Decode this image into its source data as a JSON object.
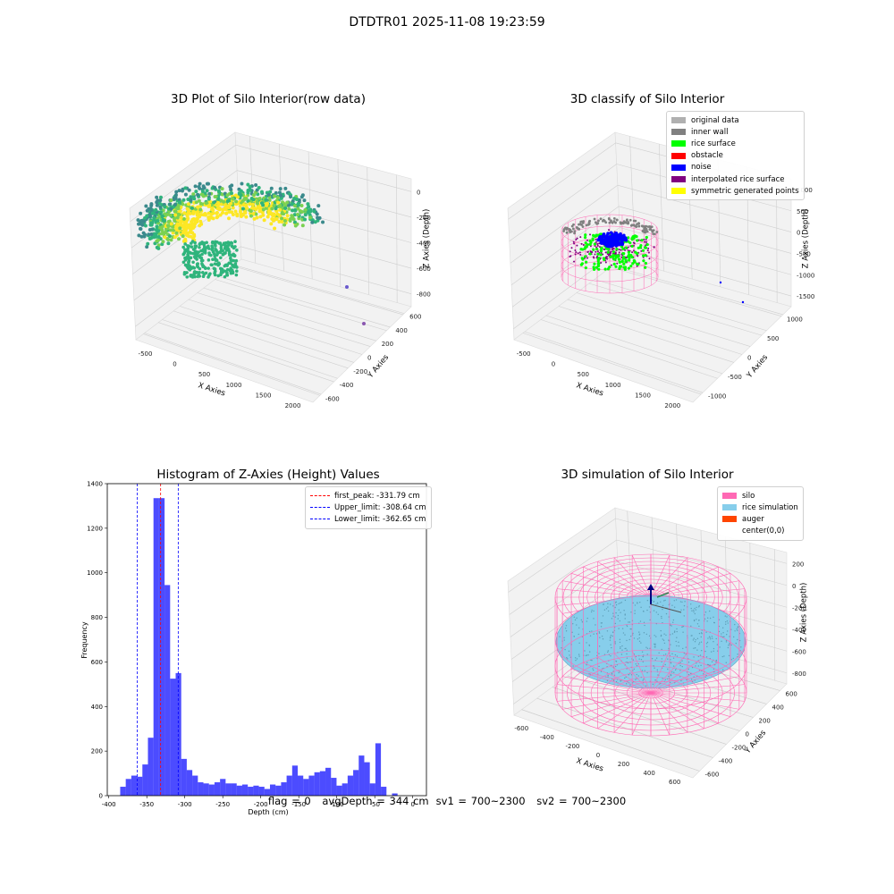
{
  "figure": {
    "title": "DTDTR01 2025-11-08 19:23:59"
  },
  "status": {
    "flag": "flag = 0",
    "avg_depth": "avgDepth = 344 cm",
    "sv1": "sv1 = 700~2300",
    "sv2": "sv2 = 700~2300"
  },
  "chart_data": [
    {
      "type": "scatter",
      "title": "3D Plot of Silo Interior(row data)",
      "xlabel": "X Axies",
      "ylabel": "Y Axies",
      "zlabel": "Z Axies (Depth)",
      "x_ticks": [
        "-500",
        "0",
        "500",
        "1000",
        "1500",
        "2000"
      ],
      "y_ticks": [
        "-600",
        "-400",
        "-200",
        "0",
        "200",
        "400",
        "600"
      ],
      "z_ticks": [
        "0",
        "-200",
        "-400",
        "-600",
        "-800"
      ],
      "grid": true,
      "colormap": [
        "#3b8a8c",
        "#2fb47c",
        "#7ad151",
        "#fde725"
      ],
      "outliers": [
        {
          "x": 2000,
          "y": 100,
          "z": -800
        },
        {
          "x": 2000,
          "y": -400,
          "z": -900
        }
      ]
    },
    {
      "type": "scatter",
      "title": "3D classify of Silo Interior",
      "xlabel": "X Axies",
      "ylabel": "Y Axies",
      "zlabel": "Z Axies (Depth)",
      "x_ticks": [
        "-500",
        "0",
        "500",
        "1000",
        "1500",
        "2000"
      ],
      "y_ticks": [
        "-1000",
        "-500",
        "0",
        "500",
        "1000"
      ],
      "z_ticks": [
        "1000",
        "500",
        "0",
        "-500",
        "-1000",
        "-1500"
      ],
      "grid": true,
      "legend_position": "top-right",
      "legend": [
        {
          "label": "original data",
          "color": "#b0b0b0"
        },
        {
          "label": "inner wall",
          "color": "#808080"
        },
        {
          "label": "rice surface",
          "color": "#00ff00"
        },
        {
          "label": "obstacle",
          "color": "#ff0000"
        },
        {
          "label": "noise",
          "color": "#0000ff"
        },
        {
          "label": "interpolated rice surface",
          "color": "#800080"
        },
        {
          "label": "symmetric generated points",
          "color": "#ffff00"
        }
      ]
    },
    {
      "type": "bar",
      "title": "Histogram of Z-Axies (Height) Values",
      "xlabel": "Depth (cm)",
      "ylabel": "Frequency",
      "xlim": [
        -402,
        18
      ],
      "ylim": [
        0,
        1400
      ],
      "x_ticks": [
        -400,
        -350,
        -300,
        -250,
        -200,
        -150,
        -100,
        -50,
        0
      ],
      "y_ticks": [
        0,
        200,
        400,
        600,
        800,
        1000,
        1200,
        1400
      ],
      "bin_start": -385,
      "bin_width": 7.3,
      "values": [
        40,
        75,
        90,
        85,
        140,
        260,
        1335,
        1335,
        945,
        525,
        550,
        165,
        115,
        90,
        60,
        55,
        50,
        60,
        75,
        55,
        55,
        45,
        50,
        40,
        45,
        40,
        30,
        50,
        45,
        60,
        90,
        135,
        90,
        75,
        90,
        105,
        110,
        125,
        80,
        45,
        55,
        90,
        115,
        180,
        150,
        55,
        235,
        40,
        0,
        10
      ],
      "color": "#0000ff",
      "legend_position": "top-right",
      "reference_lines": [
        {
          "label": "first_peak: -331.79 cm",
          "x": -331.79,
          "color": "#ff0000"
        },
        {
          "label": "Upper_limit: -308.64 cm",
          "x": -308.64,
          "color": "#0000ff"
        },
        {
          "label": "Lower_limit: -362.65 cm",
          "x": -362.65,
          "color": "#0000ff"
        }
      ]
    },
    {
      "type": "scatter",
      "title": "3D simulation of Silo Interior",
      "xlabel": "X Axies",
      "ylabel": "Y Axies",
      "zlabel": "Z Axies (Depth)",
      "x_ticks": [
        "-600",
        "-400",
        "-200",
        "0",
        "200",
        "400",
        "600"
      ],
      "y_ticks": [
        "-600",
        "-400",
        "-200",
        "0",
        "200",
        "400",
        "600"
      ],
      "z_ticks": [
        "200",
        "0",
        "-200",
        "-400",
        "-600",
        "-800"
      ],
      "grid": true,
      "legend_position": "top-right",
      "legend": [
        {
          "label": "silo",
          "color": "#ff69b4"
        },
        {
          "label": "rice simulation",
          "color": "#87ceeb"
        },
        {
          "label": "auger",
          "color": "#ff4500"
        },
        {
          "label": "center(0,0)",
          "color": "#ffffff"
        }
      ]
    }
  ]
}
